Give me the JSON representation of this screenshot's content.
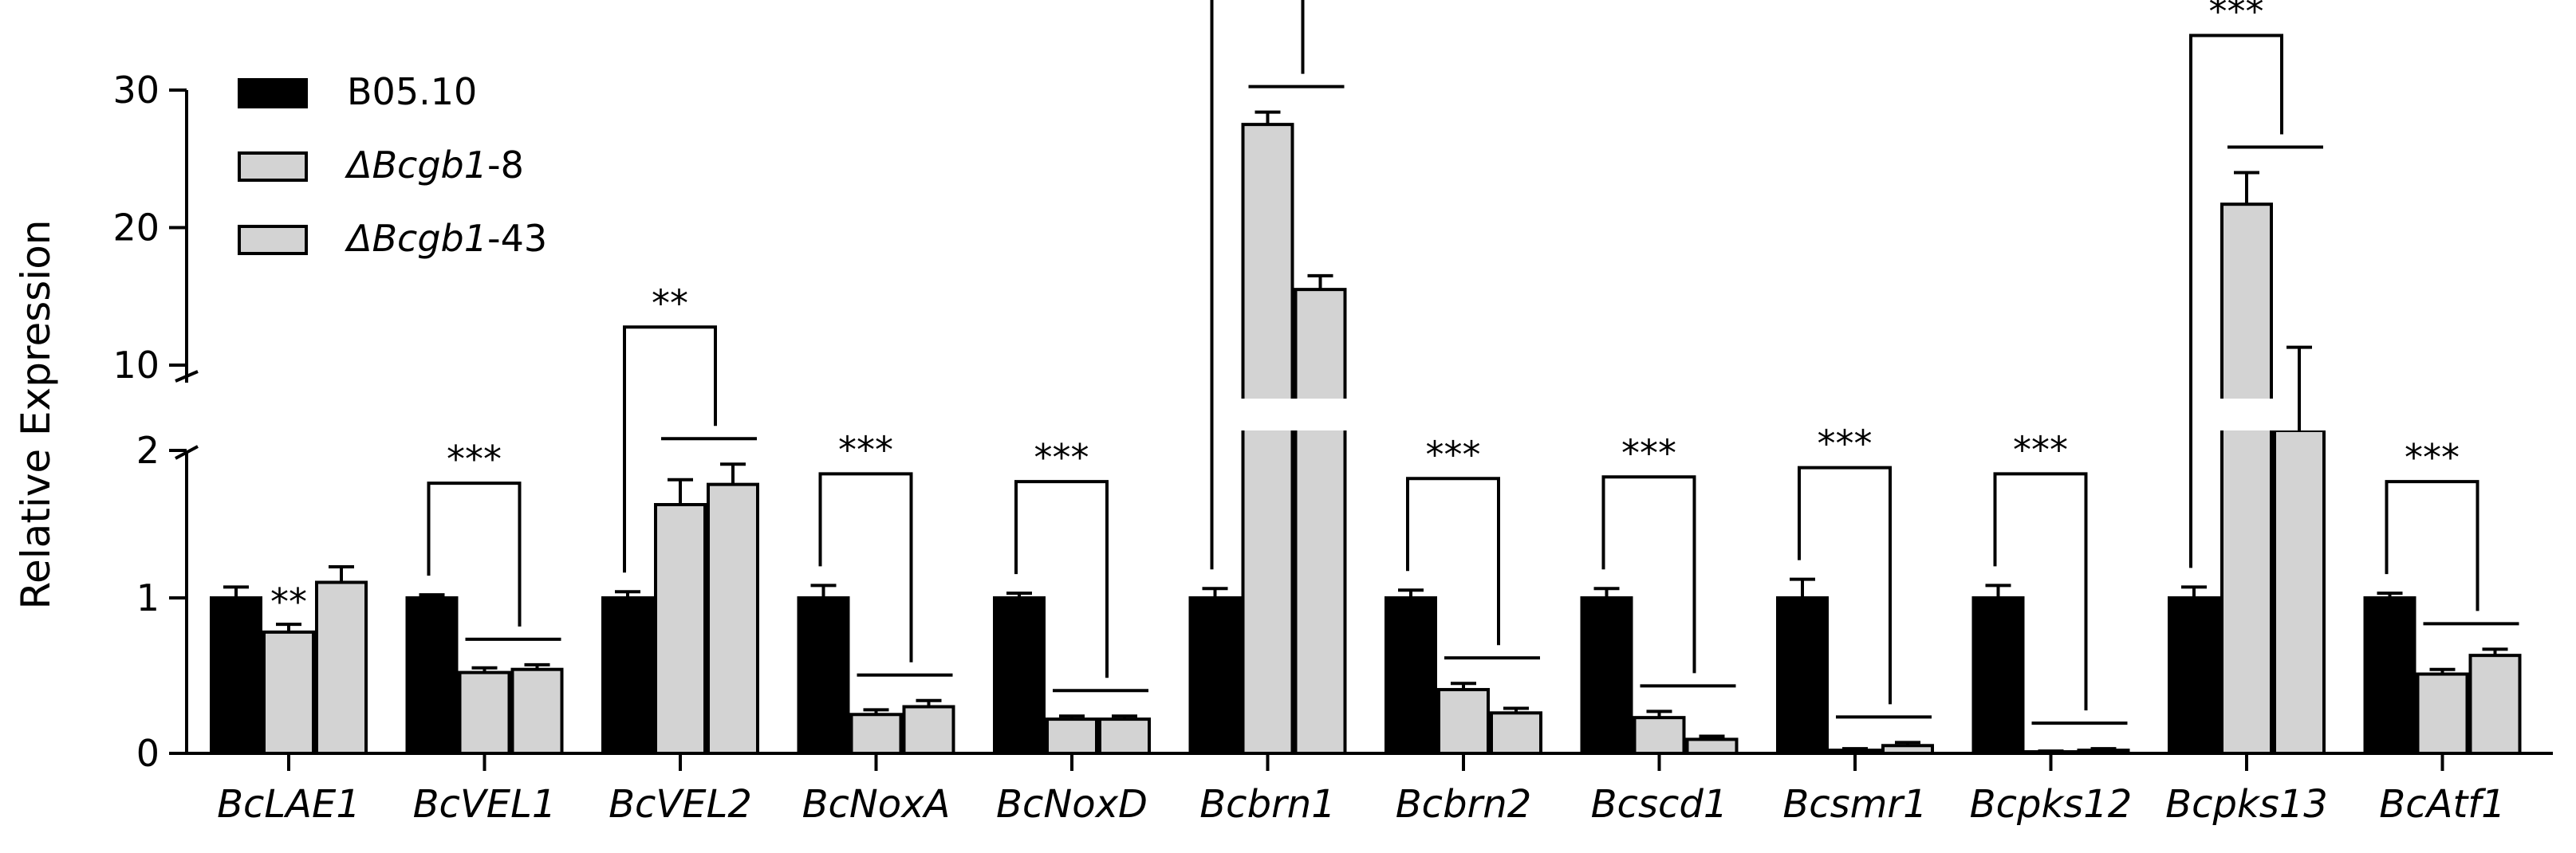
{
  "chart_data": {
    "type": "bar",
    "title": "",
    "xlabel": "",
    "ylabel": "Relative Expression",
    "ylim_lower": [
      0,
      2
    ],
    "ylim_upper": [
      10,
      30
    ],
    "y_ticks_lower": [
      "0",
      "1",
      "2"
    ],
    "y_ticks_upper": [
      "10",
      "20",
      "30"
    ],
    "grid": false,
    "legend_position": "top-left",
    "categories": [
      "BcLAE1",
      "BcVEL1",
      "BcVEL2",
      "BcNoxA",
      "BcNoxD",
      "Bcbrn1",
      "Bcbrn2",
      "Bcscd1",
      "Bcsmr1",
      "Bcpks12",
      "Bcpks13",
      "BcAtf1"
    ],
    "series": [
      {
        "name": "B05.10",
        "name_italic": "",
        "name_suffix": "",
        "color": "#000000",
        "values": [
          1.0,
          1.0,
          1.0,
          1.0,
          1.0,
          1.0,
          1.0,
          1.0,
          1.0,
          1.0,
          1.0,
          1.0
        ],
        "errors": [
          0.07,
          0.02,
          0.04,
          0.08,
          0.03,
          0.06,
          0.05,
          0.06,
          0.12,
          0.08,
          0.07,
          0.03
        ]
      },
      {
        "name": "ΔBcgb1-8",
        "name_italic": "ΔBcgb1",
        "name_suffix": "-8",
        "color": "#d3d3d3",
        "values": [
          0.78,
          0.52,
          1.6,
          0.25,
          0.22,
          27.5,
          0.41,
          0.23,
          0.02,
          0.01,
          21.7,
          0.51
        ],
        "errors": [
          0.05,
          0.03,
          0.16,
          0.03,
          0.02,
          0.9,
          0.04,
          0.04,
          0.01,
          0.005,
          2.3,
          0.03
        ]
      },
      {
        "name": "ΔBcgb1-43",
        "name_italic": "ΔBcgb1",
        "name_suffix": "-43",
        "color": "#d3d3d3",
        "values": [
          1.1,
          0.54,
          1.73,
          0.3,
          0.22,
          15.5,
          0.26,
          0.09,
          0.05,
          0.02,
          9.9,
          0.63
        ],
        "errors": [
          0.1,
          0.03,
          0.13,
          0.04,
          0.02,
          1.0,
          0.03,
          0.02,
          0.02,
          0.01,
          1.4,
          0.04
        ]
      }
    ],
    "significance": [
      {
        "label": "**",
        "style": "star"
      },
      {
        "label": "***",
        "style": "bracket"
      },
      {
        "label": "**",
        "style": "bracket"
      },
      {
        "label": "***",
        "style": "bracket"
      },
      {
        "label": "***",
        "style": "bracket"
      },
      {
        "label": "***",
        "style": "bracket"
      },
      {
        "label": "***",
        "style": "bracket"
      },
      {
        "label": "***",
        "style": "bracket"
      },
      {
        "label": "***",
        "style": "bracket"
      },
      {
        "label": "***",
        "style": "bracket"
      },
      {
        "label": "***",
        "style": "bracket"
      },
      {
        "label": "***",
        "style": "bracket"
      }
    ]
  }
}
